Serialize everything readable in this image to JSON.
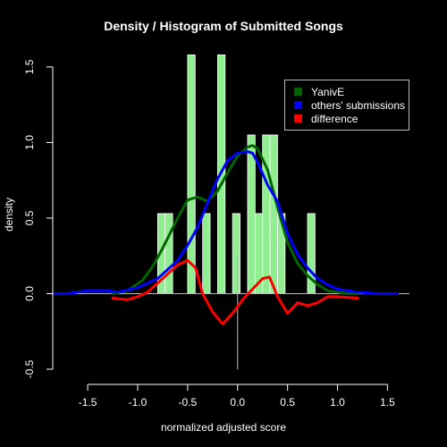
{
  "chart_data": {
    "type": "histogram+line",
    "title": "Density / Histogram of Submitted Songs",
    "xlabel": "normalized adjusted score",
    "ylabel": "density",
    "xlim": [
      -1.85,
      1.72
    ],
    "ylim": [
      -0.5,
      1.6
    ],
    "x_ticks": [
      -1.5,
      -1.0,
      -0.5,
      0.0,
      0.5,
      1.0,
      1.5
    ],
    "x_tick_labels": [
      "-1.5",
      "-1.0",
      "-0.5",
      "0.0",
      "0.5",
      "1.0",
      "1.5"
    ],
    "y_ticks": [
      -0.5,
      0.0,
      0.5,
      1.0,
      1.5
    ],
    "y_tick_labels": [
      "-0.5",
      "0.0",
      "0.5",
      "1.0",
      "1.5"
    ],
    "grid": false,
    "legend_position": "top-right",
    "histogram": {
      "color": "#90EE90",
      "bin_width": 0.075,
      "bars": [
        {
          "x0": -0.8,
          "height": 0.53
        },
        {
          "x0": -0.725,
          "height": 0.53
        },
        {
          "x0": -0.5,
          "height": 1.58
        },
        {
          "x0": -0.35,
          "height": 0.53
        },
        {
          "x0": -0.2,
          "height": 1.58
        },
        {
          "x0": -0.05,
          "height": 0.53
        },
        {
          "x0": 0.1,
          "height": 1.05
        },
        {
          "x0": 0.175,
          "height": 0.53
        },
        {
          "x0": 0.25,
          "height": 1.05
        },
        {
          "x0": 0.325,
          "height": 1.05
        },
        {
          "x0": 0.4,
          "height": 0.53
        },
        {
          "x0": 0.7,
          "height": 0.53
        }
      ]
    },
    "series": [
      {
        "name": "YanivE",
        "color": "#006400",
        "x": [
          -1.25,
          -1.1,
          -0.95,
          -0.85,
          -0.75,
          -0.6,
          -0.5,
          -0.4,
          -0.3,
          -0.2,
          -0.1,
          0.0,
          0.1,
          0.15,
          0.2,
          0.3,
          0.4,
          0.5,
          0.6,
          0.7,
          0.8,
          0.9,
          1.0,
          1.1,
          1.2
        ],
        "y": [
          0.0,
          0.02,
          0.09,
          0.18,
          0.3,
          0.5,
          0.62,
          0.64,
          0.61,
          0.68,
          0.8,
          0.91,
          0.97,
          0.98,
          0.96,
          0.82,
          0.57,
          0.34,
          0.2,
          0.12,
          0.06,
          0.02,
          0.01,
          0.0,
          0.0
        ]
      },
      {
        "name": "others' submissions",
        "color": "#0000FF",
        "x": [
          -1.85,
          -1.7,
          -1.5,
          -1.3,
          -1.2,
          -1.0,
          -0.8,
          -0.6,
          -0.5,
          -0.4,
          -0.3,
          -0.2,
          -0.1,
          0.0,
          0.1,
          0.15,
          0.2,
          0.3,
          0.4,
          0.5,
          0.6,
          0.7,
          0.8,
          0.9,
          1.0,
          1.1,
          1.2,
          1.4,
          1.6
        ],
        "y": [
          0.0,
          0.0,
          0.02,
          0.02,
          0.01,
          0.04,
          0.1,
          0.22,
          0.32,
          0.44,
          0.6,
          0.76,
          0.88,
          0.93,
          0.94,
          0.93,
          0.87,
          0.72,
          0.61,
          0.4,
          0.26,
          0.17,
          0.1,
          0.06,
          0.03,
          0.02,
          0.01,
          0.0,
          0.0
        ]
      },
      {
        "name": "difference",
        "color": "#FF0000",
        "x": [
          -1.25,
          -1.1,
          -1.0,
          -0.9,
          -0.8,
          -0.7,
          -0.6,
          -0.5,
          -0.42,
          -0.35,
          -0.25,
          -0.15,
          -0.05,
          0.05,
          0.15,
          0.25,
          0.32,
          0.4,
          0.5,
          0.6,
          0.7,
          0.8,
          0.9,
          1.0,
          1.2
        ],
        "y": [
          -0.03,
          -0.04,
          -0.02,
          0.01,
          0.07,
          0.13,
          0.19,
          0.22,
          0.17,
          0.0,
          -0.12,
          -0.2,
          -0.13,
          -0.04,
          0.03,
          0.1,
          0.11,
          -0.02,
          -0.13,
          -0.06,
          -0.08,
          -0.06,
          -0.02,
          -0.02,
          -0.03
        ]
      }
    ]
  }
}
